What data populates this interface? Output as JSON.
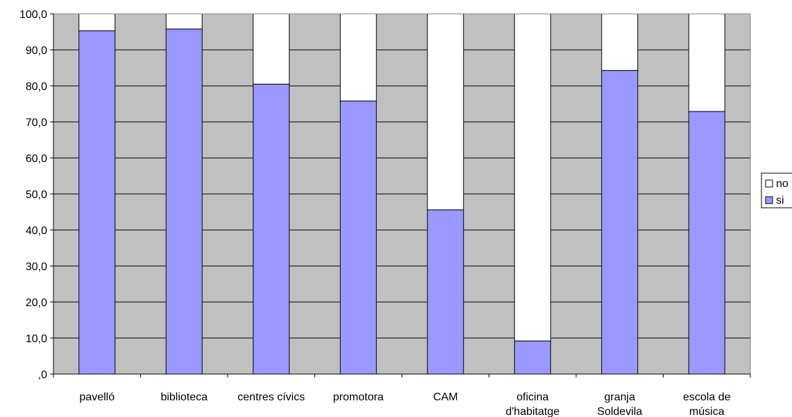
{
  "chart_data": {
    "type": "bar",
    "stacked": true,
    "percent_stacked": true,
    "categories": [
      [
        "pavelló"
      ],
      [
        "biblioteca"
      ],
      [
        "centres cívics"
      ],
      [
        "promotora"
      ],
      [
        "CAM"
      ],
      [
        "oficina",
        "d'habitatge"
      ],
      [
        "granja",
        "Soldevila"
      ],
      [
        "escola de",
        "música"
      ]
    ],
    "series": [
      {
        "name": "si",
        "values": [
          95.3,
          95.8,
          80.5,
          75.8,
          45.6,
          9.2,
          84.3,
          72.9
        ],
        "color": "#9999ff"
      },
      {
        "name": "no",
        "values": [
          4.7,
          4.2,
          19.5,
          24.2,
          54.4,
          90.8,
          15.7,
          27.1
        ],
        "color": "#ffffff"
      }
    ],
    "ylim": [
      0,
      100
    ],
    "yticks": [
      "100,0",
      "90,0",
      "80,0",
      "70,0",
      "60,0",
      "50,0",
      "40,0",
      "30,0",
      "20,0",
      "10,0",
      ",0"
    ],
    "ytick_values": [
      100,
      90,
      80,
      70,
      60,
      50,
      40,
      30,
      20,
      10,
      0
    ],
    "grid": true,
    "plot_background": "#c0c0c0",
    "legend": {
      "position": "right",
      "entries": [
        "no",
        "si"
      ]
    }
  }
}
